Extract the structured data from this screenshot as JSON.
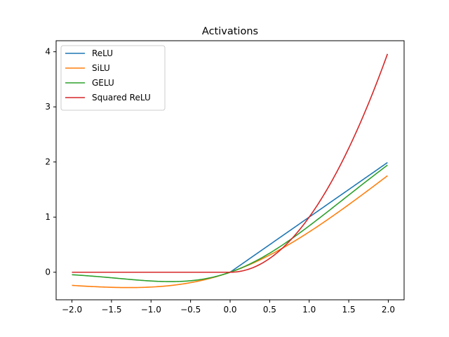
{
  "chart_data": {
    "type": "line",
    "title": "Activations",
    "xlabel": "",
    "ylabel": "",
    "xlim": [
      -2.2,
      2.2
    ],
    "ylim": [
      -0.5,
      4.2
    ],
    "xticks": [
      -2.0,
      -1.5,
      -1.0,
      -0.5,
      0.0,
      0.5,
      1.0,
      1.5,
      2.0
    ],
    "xtick_labels": [
      "−2.0",
      "−1.5",
      "−1.0",
      "−0.5",
      "0.0",
      "0.5",
      "1.0",
      "1.5",
      "2.0"
    ],
    "yticks": [
      0,
      1,
      2,
      3,
      4
    ],
    "ytick_labels": [
      "0",
      "1",
      "2",
      "3",
      "4"
    ],
    "grid": false,
    "legend_position": "top-left",
    "x": [
      -2.0,
      -1.75,
      -1.5,
      -1.25,
      -1.0,
      -0.75,
      -0.5,
      -0.25,
      0.0,
      0.25,
      0.5,
      0.75,
      1.0,
      1.25,
      1.5,
      1.75,
      1.99
    ],
    "series": [
      {
        "name": "ReLU",
        "color": "#1f77b4",
        "values": [
          0,
          0,
          0,
          0,
          0,
          0,
          0,
          0,
          0,
          0.25,
          0.5,
          0.75,
          1.0,
          1.25,
          1.5,
          1.75,
          1.99
        ]
      },
      {
        "name": "SiLU",
        "color": "#ff7f0e",
        "values": [
          -0.238,
          -0.257,
          -0.274,
          -0.278,
          -0.269,
          -0.239,
          -0.189,
          -0.11,
          0,
          0.141,
          0.311,
          0.51,
          0.731,
          0.969,
          1.226,
          1.488,
          1.749
        ]
      },
      {
        "name": "GELU",
        "color": "#2ca02c",
        "values": [
          -0.045,
          -0.07,
          -0.1,
          -0.132,
          -0.159,
          -0.17,
          -0.154,
          -0.1,
          0,
          0.15,
          0.346,
          0.58,
          0.841,
          1.118,
          1.4,
          1.68,
          1.943
        ]
      },
      {
        "name": "Squared ReLU",
        "color": "#d62728",
        "values": [
          0,
          0,
          0,
          0,
          0,
          0,
          0,
          0,
          0,
          0.0625,
          0.25,
          0.5625,
          1.0,
          1.5625,
          2.25,
          3.0625,
          3.96
        ]
      }
    ]
  }
}
